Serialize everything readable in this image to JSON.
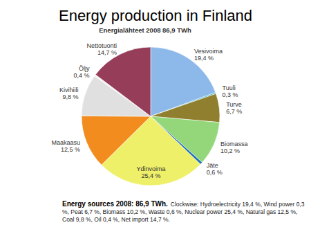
{
  "chart_data": {
    "type": "pie",
    "title": "Energy production in Finland",
    "subtitle": "Energialähteet 2008 86,9 TWh",
    "categories": [
      "Vesivoima",
      "Tuuli",
      "Turve",
      "Biomassa",
      "Jäte",
      "Ydinvoima",
      "Maakaasu",
      "Kivihiili",
      "Öljy",
      "Nettotuonti"
    ],
    "values": [
      19.4,
      0.3,
      6.7,
      10.2,
      0.6,
      25.4,
      12.5,
      9.8,
      0.4,
      14.7
    ],
    "value_labels": [
      "19,4 %",
      "0,3 %",
      "6,7 %",
      "10,2 %",
      "0,6 %",
      "25,4 %",
      "12,5 %",
      "9,8 %",
      "0,4 %",
      "14,7 %"
    ],
    "colors": [
      "#8db8ea",
      "#3fb0c8",
      "#8f7f2e",
      "#93d77a",
      "#1f6fb5",
      "#eef06a",
      "#f28c1e",
      "#e0e0e0",
      "#f4f4f4",
      "#963d5a"
    ],
    "data_labels": true,
    "annotations": [
      "Energy sources 2008: 86,9 TWh.",
      "Clockwise: Hydroelectricity 19,4 %, Wind power 0,3 %, Peat 6,7 %, Biomass 10,2 %, Waste 0,6 %, Nuclear power 25,4 %, Natural gas 12,5 %, Coal 9,8 %, Oil 0,4 %, Net import 14,7 %."
    ]
  }
}
